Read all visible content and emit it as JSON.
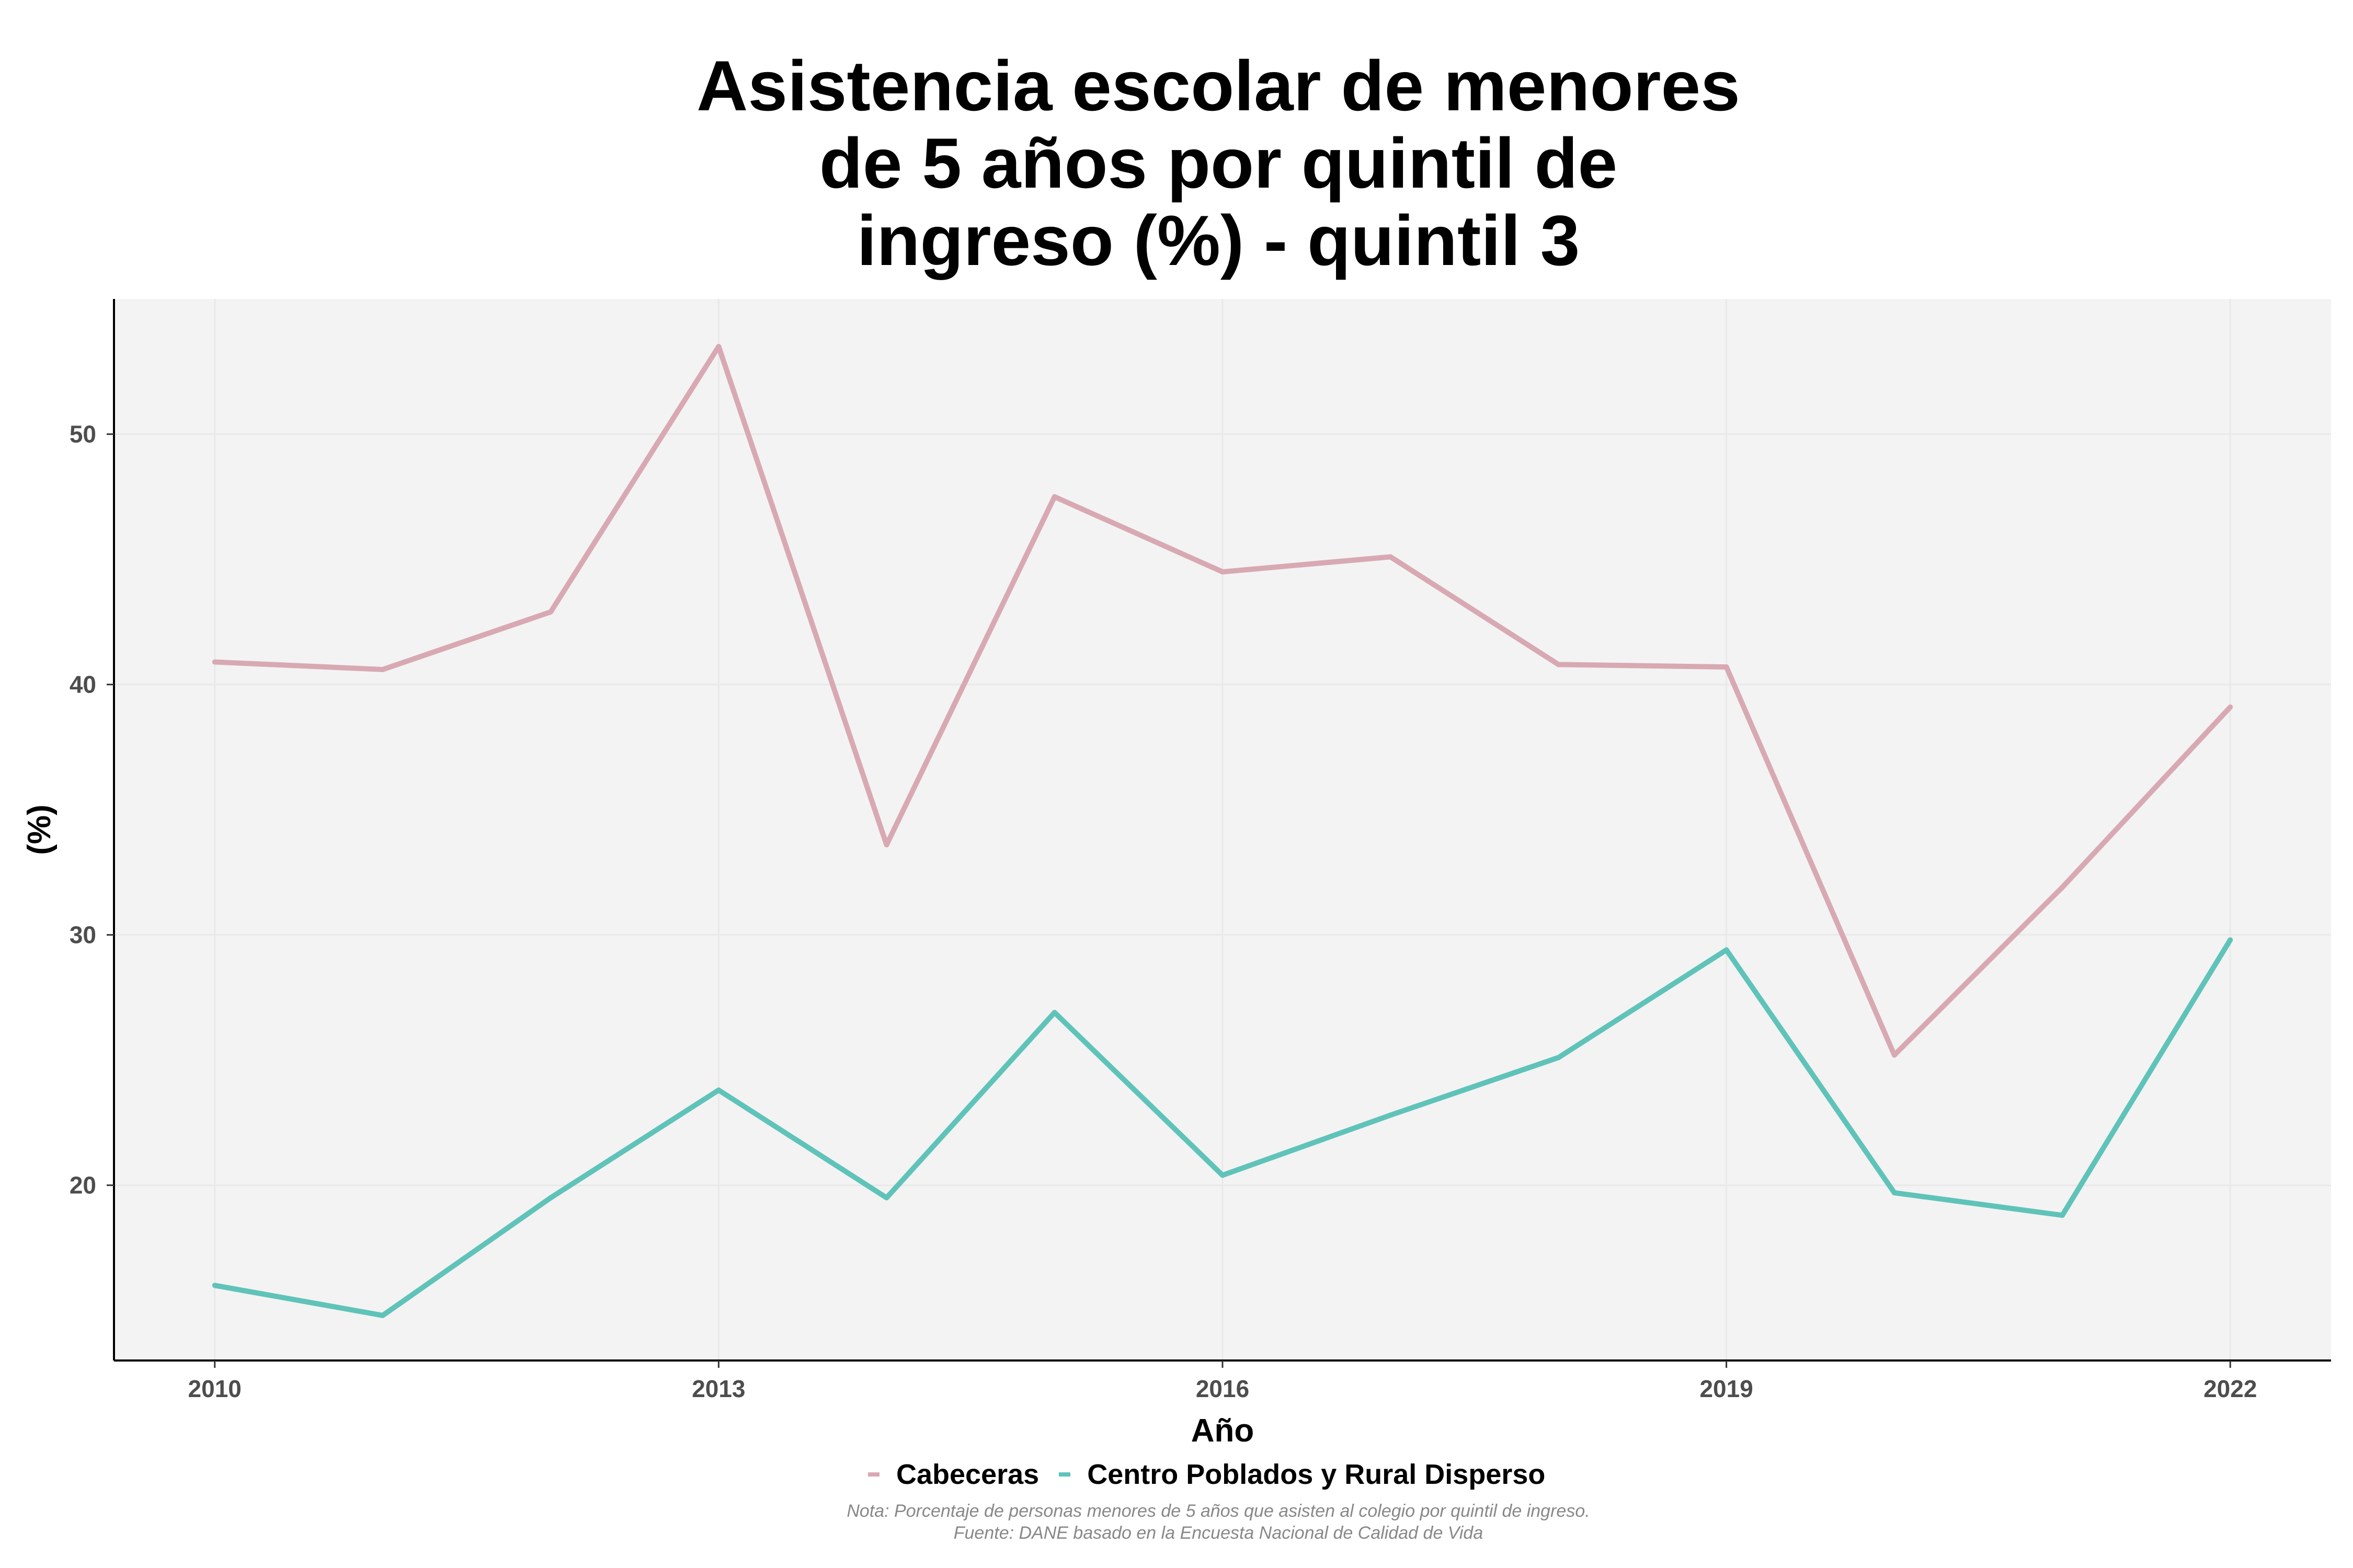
{
  "chart_data": {
    "type": "line",
    "title_lines": [
      "Asistencia escolar de menores",
      "de 5 años por quintil de",
      "ingreso (%) - quintil 3"
    ],
    "xlabel": "Año",
    "ylabel": "(%)",
    "x": [
      2010,
      2011,
      2012,
      2013,
      2014,
      2015,
      2016,
      2017,
      2018,
      2019,
      2020,
      2021,
      2022
    ],
    "x_ticks": [
      2010,
      2013,
      2016,
      2019,
      2022
    ],
    "y_ticks": [
      20,
      30,
      40,
      50
    ],
    "xlim": [
      2009.4,
      2022.6
    ],
    "ylim": [
      13.0,
      55.4
    ],
    "grid": true,
    "legend_position": "bottom",
    "series": [
      {
        "name": "Cabeceras",
        "color": "#d8a9b3",
        "values": [
          40.9,
          40.6,
          42.9,
          53.5,
          33.6,
          47.5,
          44.5,
          45.1,
          40.8,
          40.7,
          25.2,
          31.9,
          39.1
        ]
      },
      {
        "name": "Centro Poblados y Rural Disperso",
        "color": "#5fc3b9",
        "values": [
          16.0,
          14.8,
          19.5,
          23.8,
          19.5,
          26.9,
          20.4,
          22.8,
          25.1,
          29.4,
          19.7,
          18.8,
          29.8
        ]
      }
    ],
    "note": "Nota: Porcentaje de personas menores de 5 años que asisten al colegio por quintil de ingreso.",
    "source": "Fuente: DANE basado en la Encuesta Nacional de Calidad de Vida"
  }
}
